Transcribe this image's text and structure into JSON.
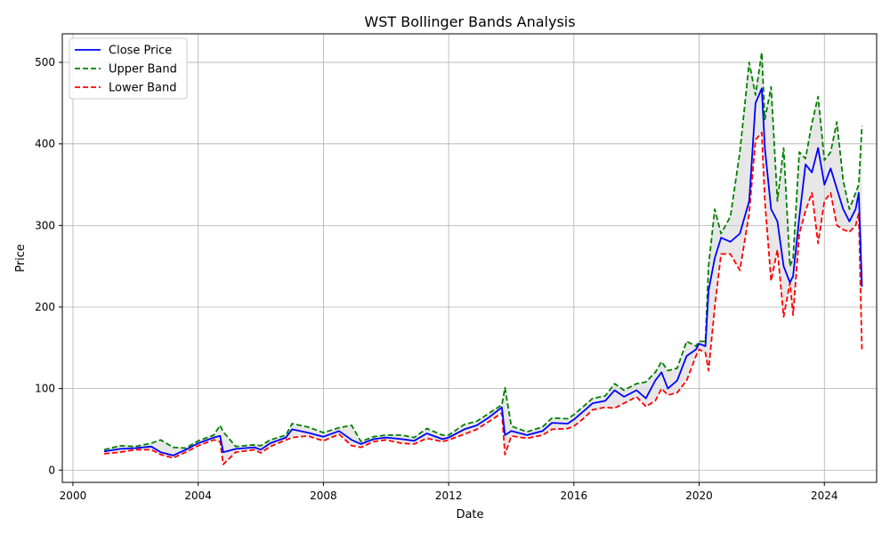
{
  "chart_data": {
    "type": "line",
    "title": "WST Bollinger Bands Analysis",
    "xlabel": "Date",
    "ylabel": "Price",
    "xlim": [
      1999.66,
      2025.67
    ],
    "ylim": [
      -15,
      535
    ],
    "x_ticks": [
      2000,
      2004,
      2008,
      2012,
      2016,
      2020,
      2024
    ],
    "y_ticks": [
      0,
      100,
      200,
      300,
      400,
      500
    ],
    "grid": true,
    "legend_position": "top-left",
    "fill_between_bands": true,
    "series": [
      {
        "name": "Close Price",
        "color": "#0000ff",
        "style": "solid",
        "points": [
          [
            2001.0,
            23
          ],
          [
            2001.5,
            26
          ],
          [
            2002.0,
            27
          ],
          [
            2002.5,
            29
          ],
          [
            2002.8,
            22
          ],
          [
            2003.2,
            18
          ],
          [
            2003.6,
            25
          ],
          [
            2004.0,
            33
          ],
          [
            2004.5,
            40
          ],
          [
            2004.7,
            42
          ],
          [
            2004.8,
            22
          ],
          [
            2005.2,
            26
          ],
          [
            2005.8,
            28
          ],
          [
            2006.0,
            25
          ],
          [
            2006.3,
            33
          ],
          [
            2006.8,
            40
          ],
          [
            2007.0,
            50
          ],
          [
            2007.5,
            46
          ],
          [
            2008.0,
            41
          ],
          [
            2008.5,
            48
          ],
          [
            2008.9,
            37
          ],
          [
            2009.2,
            32
          ],
          [
            2009.6,
            38
          ],
          [
            2010.0,
            40
          ],
          [
            2010.5,
            38
          ],
          [
            2010.9,
            36
          ],
          [
            2011.3,
            45
          ],
          [
            2011.8,
            38
          ],
          [
            2012.0,
            40
          ],
          [
            2012.5,
            50
          ],
          [
            2012.9,
            55
          ],
          [
            2013.3,
            65
          ],
          [
            2013.7,
            77
          ],
          [
            2013.8,
            43
          ],
          [
            2014.0,
            48
          ],
          [
            2014.5,
            43
          ],
          [
            2015.0,
            48
          ],
          [
            2015.3,
            58
          ],
          [
            2015.8,
            57
          ],
          [
            2016.0,
            62
          ],
          [
            2016.3,
            72
          ],
          [
            2016.6,
            82
          ],
          [
            2017.0,
            85
          ],
          [
            2017.3,
            98
          ],
          [
            2017.6,
            90
          ],
          [
            2018.0,
            98
          ],
          [
            2018.3,
            88
          ],
          [
            2018.6,
            110
          ],
          [
            2018.8,
            120
          ],
          [
            2019.0,
            100
          ],
          [
            2019.3,
            110
          ],
          [
            2019.6,
            140
          ],
          [
            2019.9,
            148
          ],
          [
            2020.0,
            155
          ],
          [
            2020.2,
            152
          ],
          [
            2020.3,
            220
          ],
          [
            2020.5,
            260
          ],
          [
            2020.7,
            285
          ],
          [
            2021.0,
            280
          ],
          [
            2021.3,
            290
          ],
          [
            2021.6,
            330
          ],
          [
            2021.8,
            450
          ],
          [
            2022.0,
            468
          ],
          [
            2022.1,
            395
          ],
          [
            2022.3,
            320
          ],
          [
            2022.5,
            305
          ],
          [
            2022.7,
            250
          ],
          [
            2022.9,
            230
          ],
          [
            2023.0,
            238
          ],
          [
            2023.2,
            310
          ],
          [
            2023.4,
            375
          ],
          [
            2023.6,
            365
          ],
          [
            2023.8,
            395
          ],
          [
            2024.0,
            350
          ],
          [
            2024.2,
            370
          ],
          [
            2024.4,
            345
          ],
          [
            2024.6,
            320
          ],
          [
            2024.8,
            305
          ],
          [
            2025.0,
            320
          ],
          [
            2025.1,
            340
          ],
          [
            2025.2,
            225
          ]
        ]
      },
      {
        "name": "Upper Band",
        "color": "#008000",
        "style": "dashed",
        "points": [
          [
            2001.0,
            25
          ],
          [
            2001.5,
            30
          ],
          [
            2002.0,
            29
          ],
          [
            2002.5,
            33
          ],
          [
            2002.8,
            37
          ],
          [
            2003.2,
            28
          ],
          [
            2003.6,
            27
          ],
          [
            2004.0,
            36
          ],
          [
            2004.5,
            43
          ],
          [
            2004.7,
            55
          ],
          [
            2004.8,
            47
          ],
          [
            2005.2,
            29
          ],
          [
            2005.8,
            31
          ],
          [
            2006.0,
            30
          ],
          [
            2006.3,
            37
          ],
          [
            2006.8,
            43
          ],
          [
            2007.0,
            57
          ],
          [
            2007.5,
            53
          ],
          [
            2008.0,
            46
          ],
          [
            2008.5,
            52
          ],
          [
            2008.9,
            55
          ],
          [
            2009.2,
            35
          ],
          [
            2009.6,
            41
          ],
          [
            2010.0,
            43
          ],
          [
            2010.5,
            43
          ],
          [
            2010.9,
            40
          ],
          [
            2011.3,
            51
          ],
          [
            2011.8,
            43
          ],
          [
            2012.0,
            43
          ],
          [
            2012.5,
            56
          ],
          [
            2012.9,
            60
          ],
          [
            2013.3,
            70
          ],
          [
            2013.7,
            80
          ],
          [
            2013.8,
            101
          ],
          [
            2014.0,
            54
          ],
          [
            2014.5,
            47
          ],
          [
            2015.0,
            53
          ],
          [
            2015.3,
            64
          ],
          [
            2015.8,
            63
          ],
          [
            2016.0,
            68
          ],
          [
            2016.3,
            78
          ],
          [
            2016.6,
            88
          ],
          [
            2017.0,
            91
          ],
          [
            2017.3,
            106
          ],
          [
            2017.6,
            98
          ],
          [
            2018.0,
            106
          ],
          [
            2018.3,
            108
          ],
          [
            2018.6,
            120
          ],
          [
            2018.8,
            133
          ],
          [
            2019.0,
            122
          ],
          [
            2019.3,
            125
          ],
          [
            2019.6,
            158
          ],
          [
            2019.9,
            152
          ],
          [
            2020.0,
            158
          ],
          [
            2020.2,
            158
          ],
          [
            2020.3,
            250
          ],
          [
            2020.5,
            320
          ],
          [
            2020.7,
            290
          ],
          [
            2021.0,
            311
          ],
          [
            2021.3,
            390
          ],
          [
            2021.6,
            500
          ],
          [
            2021.8,
            460
          ],
          [
            2022.0,
            512
          ],
          [
            2022.1,
            430
          ],
          [
            2022.3,
            470
          ],
          [
            2022.5,
            330
          ],
          [
            2022.7,
            395
          ],
          [
            2022.9,
            250
          ],
          [
            2023.0,
            260
          ],
          [
            2023.2,
            390
          ],
          [
            2023.4,
            382
          ],
          [
            2023.6,
            425
          ],
          [
            2023.8,
            458
          ],
          [
            2024.0,
            380
          ],
          [
            2024.2,
            390
          ],
          [
            2024.4,
            427
          ],
          [
            2024.6,
            355
          ],
          [
            2024.8,
            320
          ],
          [
            2025.0,
            340
          ],
          [
            2025.1,
            350
          ],
          [
            2025.2,
            422
          ]
        ]
      },
      {
        "name": "Lower Band",
        "color": "#ff0000",
        "style": "dashed",
        "points": [
          [
            2001.0,
            20
          ],
          [
            2001.5,
            22
          ],
          [
            2002.0,
            25
          ],
          [
            2002.5,
            25
          ],
          [
            2002.8,
            19
          ],
          [
            2003.2,
            15
          ],
          [
            2003.6,
            22
          ],
          [
            2004.0,
            30
          ],
          [
            2004.5,
            37
          ],
          [
            2004.7,
            35
          ],
          [
            2004.8,
            7
          ],
          [
            2005.2,
            22
          ],
          [
            2005.8,
            25
          ],
          [
            2006.0,
            21
          ],
          [
            2006.3,
            29
          ],
          [
            2006.8,
            37
          ],
          [
            2007.0,
            40
          ],
          [
            2007.5,
            42
          ],
          [
            2008.0,
            36
          ],
          [
            2008.5,
            44
          ],
          [
            2008.9,
            30
          ],
          [
            2009.2,
            28
          ],
          [
            2009.6,
            35
          ],
          [
            2010.0,
            37
          ],
          [
            2010.5,
            33
          ],
          [
            2010.9,
            32
          ],
          [
            2011.3,
            39
          ],
          [
            2011.8,
            35
          ],
          [
            2012.0,
            37
          ],
          [
            2012.5,
            44
          ],
          [
            2012.9,
            50
          ],
          [
            2013.3,
            60
          ],
          [
            2013.7,
            70
          ],
          [
            2013.8,
            19
          ],
          [
            2014.0,
            42
          ],
          [
            2014.5,
            39
          ],
          [
            2015.0,
            43
          ],
          [
            2015.3,
            50
          ],
          [
            2015.8,
            51
          ],
          [
            2016.0,
            54
          ],
          [
            2016.3,
            63
          ],
          [
            2016.6,
            74
          ],
          [
            2017.0,
            77
          ],
          [
            2017.3,
            76
          ],
          [
            2017.6,
            82
          ],
          [
            2018.0,
            90
          ],
          [
            2018.3,
            78
          ],
          [
            2018.6,
            85
          ],
          [
            2018.8,
            100
          ],
          [
            2019.0,
            92
          ],
          [
            2019.3,
            95
          ],
          [
            2019.6,
            110
          ],
          [
            2019.9,
            140
          ],
          [
            2020.0,
            148
          ],
          [
            2020.2,
            144
          ],
          [
            2020.3,
            122
          ],
          [
            2020.5,
            200
          ],
          [
            2020.7,
            265
          ],
          [
            2021.0,
            265
          ],
          [
            2021.3,
            245
          ],
          [
            2021.6,
            315
          ],
          [
            2021.8,
            405
          ],
          [
            2022.0,
            414
          ],
          [
            2022.1,
            330
          ],
          [
            2022.3,
            232
          ],
          [
            2022.5,
            270
          ],
          [
            2022.7,
            188
          ],
          [
            2022.9,
            230
          ],
          [
            2023.0,
            190
          ],
          [
            2023.2,
            290
          ],
          [
            2023.4,
            318
          ],
          [
            2023.6,
            340
          ],
          [
            2023.8,
            278
          ],
          [
            2024.0,
            330
          ],
          [
            2024.2,
            340
          ],
          [
            2024.4,
            300
          ],
          [
            2024.6,
            295
          ],
          [
            2024.8,
            292
          ],
          [
            2025.0,
            300
          ],
          [
            2025.1,
            315
          ],
          [
            2025.2,
            146
          ]
        ]
      }
    ]
  }
}
